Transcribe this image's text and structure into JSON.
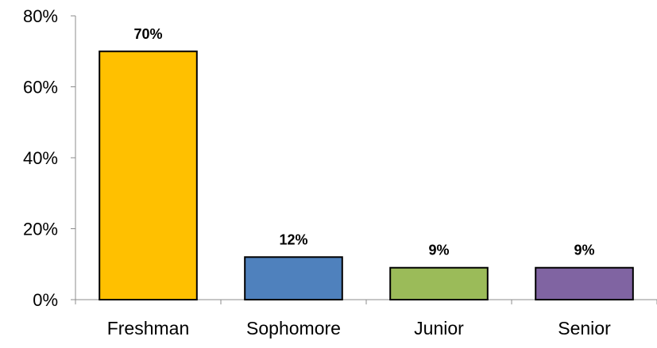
{
  "chart_data": {
    "type": "bar",
    "title": "",
    "xlabel": "",
    "ylabel": "",
    "categories": [
      "Freshman",
      "Sophomore",
      "Junior",
      "Senior"
    ],
    "values": [
      70,
      12,
      9,
      9
    ],
    "data_labels": [
      "70%",
      "12%",
      "9%",
      "9%"
    ],
    "colors": [
      "#FFC000",
      "#4F81BD",
      "#9BBB59",
      "#8064A2"
    ],
    "ylim": [
      0,
      80
    ],
    "yticks": [
      0,
      20,
      40,
      60,
      80
    ],
    "ytick_labels": [
      "0%",
      "20%",
      "40%",
      "60%",
      "80%"
    ],
    "grid": false,
    "legend": "none"
  }
}
